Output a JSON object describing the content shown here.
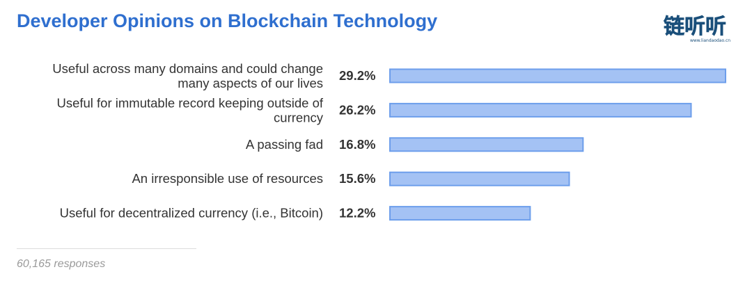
{
  "chart_data": {
    "type": "bar",
    "orientation": "horizontal",
    "title": "Developer Opinions on Blockchain Technology",
    "categories": [
      [
        "Useful across many domains and could change",
        "many aspects of our lives"
      ],
      [
        "Useful for immutable record keeping outside of",
        "currency"
      ],
      [
        "A passing fad"
      ],
      [
        "An irresponsible use of resources"
      ],
      [
        "Useful for decentralized currency (i.e., Bitcoin)"
      ]
    ],
    "values": [
      29.2,
      26.2,
      16.8,
      15.6,
      12.2
    ],
    "value_labels": [
      "29.2%",
      "26.2%",
      "16.8%",
      "15.6%",
      "12.2%"
    ],
    "xlim": [
      0,
      29.2
    ],
    "grid": false,
    "legend": "none",
    "colors": {
      "bar_fill": "#a4c2f4",
      "bar_stroke": "#6d9eeb",
      "title": "#2f6fcf"
    }
  },
  "footer": {
    "responses": "60,165 responses"
  },
  "logo": {
    "text": "链听听",
    "subtext": "www.liandaodao.cn"
  }
}
